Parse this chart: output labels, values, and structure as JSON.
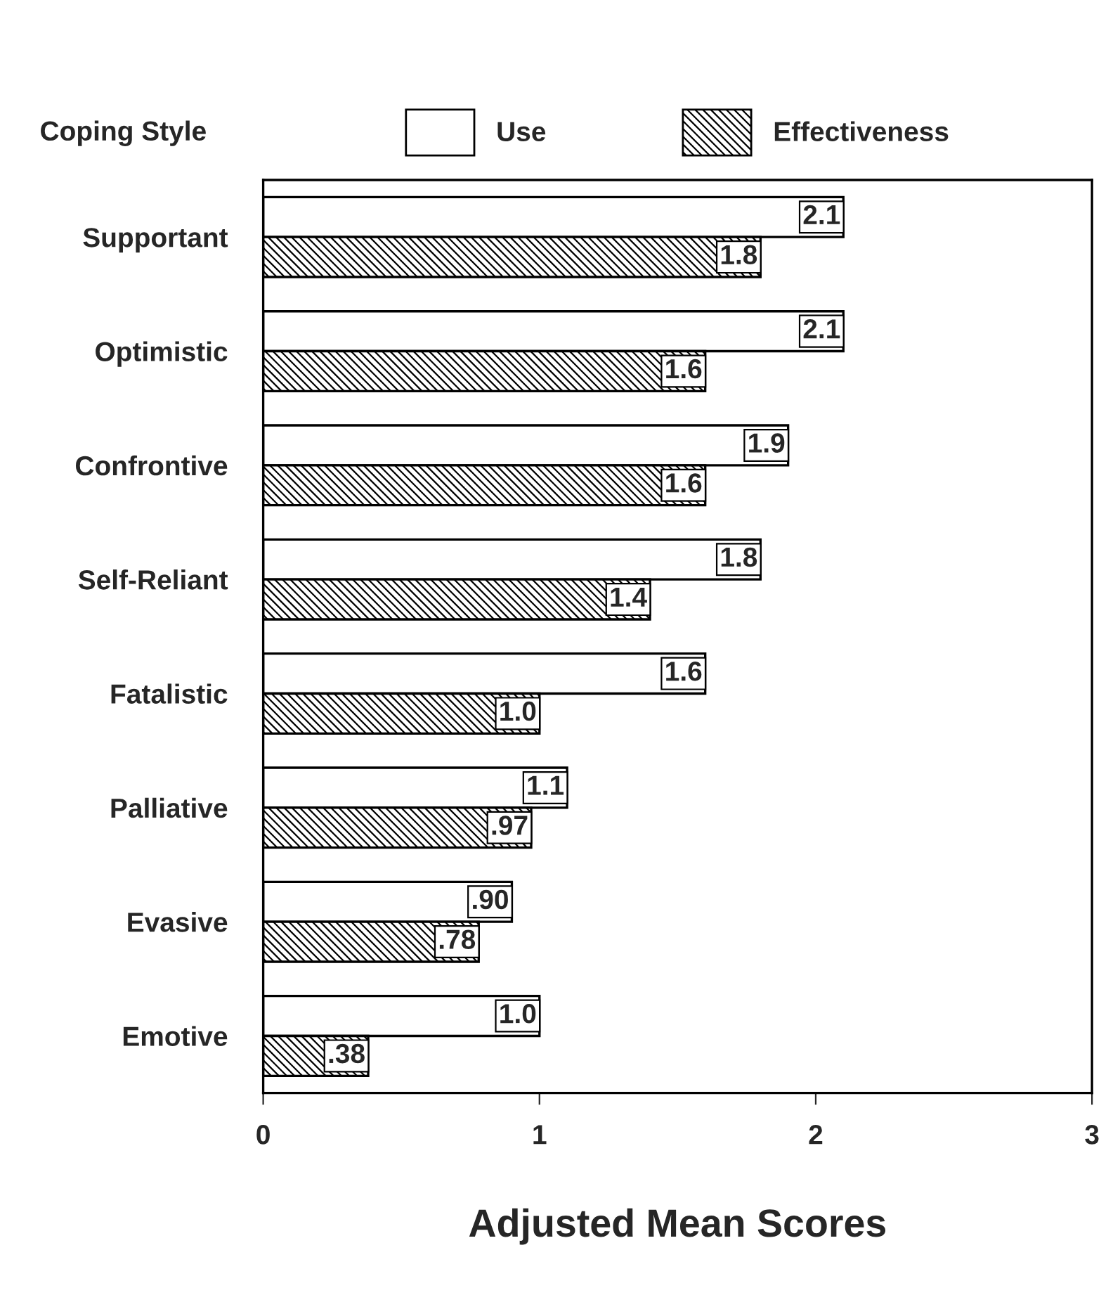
{
  "chart_data": {
    "type": "bar",
    "orientation": "horizontal",
    "xlabel": "Adjusted Mean Scores",
    "ylabel": "Coping Style",
    "categories": [
      "Supportant",
      "Optimistic",
      "Confrontive",
      "Self-Reliant",
      "Fatalistic",
      "Palliative",
      "Evasive",
      "Emotive"
    ],
    "series": [
      {
        "name": "Use",
        "color": "#ffffff",
        "values": [
          2.1,
          2.1,
          1.9,
          1.8,
          1.6,
          1.1,
          0.9,
          1.0
        ],
        "value_labels": [
          "2.1",
          "2.1",
          "1.9",
          "1.8",
          "1.6",
          "1.1",
          ".90",
          "1.0"
        ]
      },
      {
        "name": "Effectiveness",
        "color": "#000000",
        "values": [
          1.8,
          1.6,
          1.6,
          1.4,
          1.0,
          0.97,
          0.78,
          0.38
        ],
        "value_labels": [
          "1.8",
          "1.6",
          "1.6",
          "1.4",
          "1.0",
          ".97",
          ".78",
          ".38"
        ]
      }
    ],
    "xlim": [
      0,
      3
    ],
    "xticks": [
      0,
      1,
      2,
      3
    ],
    "grid": false,
    "legend": "top"
  }
}
